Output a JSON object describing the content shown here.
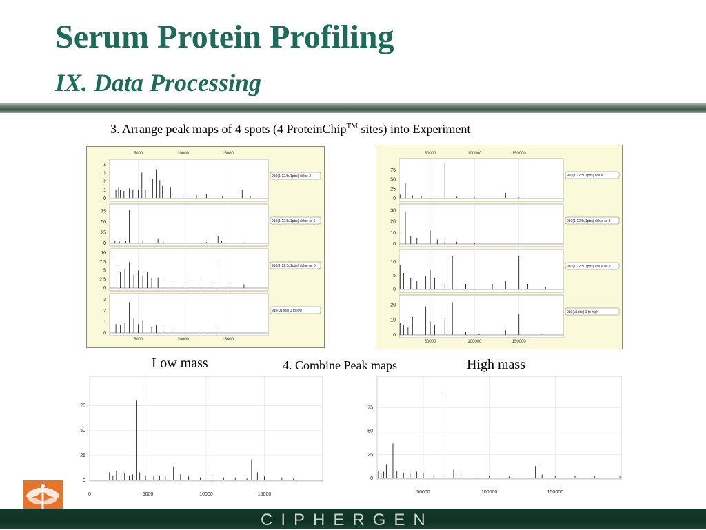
{
  "title": "Serum Protein Profiling",
  "subtitle": "IX. Data Processing",
  "step3": {
    "text": "3. Arrange peak maps of 4 spots (4 ProteinChip",
    "superscript": "TM",
    "suffix": " sites) into Experiment"
  },
  "step4": "4. Combine Peak maps",
  "low_mass_label": "Low mass",
  "high_mass_label": "High mass",
  "footer_brand": "CIPHERGEN",
  "logo_icon": "dragonfly-logo-icon",
  "colors": {
    "title": "#1f6b5a",
    "panel_bg": "#fafadb",
    "footer": "#0f3124",
    "logo": "#e8742c"
  },
  "chart_data": [
    {
      "type": "bar",
      "name_ref": "panel-left",
      "x_ticks": [
        "5000",
        "10000",
        "15000"
      ],
      "xlim": [
        1800,
        19500
      ],
      "subplots": [
        {
          "legend": "910(1-12.5u1pbs) cblue 3",
          "yticks": [
            "0",
            "1",
            "2",
            "3",
            "4"
          ],
          "ylim": [
            0,
            4.2
          ],
          "peaks": [
            [
              2500,
              1.1
            ],
            [
              2800,
              1.3
            ],
            [
              3000,
              1.0
            ],
            [
              3400,
              0.9
            ],
            [
              4000,
              1.2
            ],
            [
              4400,
              1.0
            ],
            [
              5000,
              1.0
            ],
            [
              5400,
              3.1
            ],
            [
              5800,
              1.0
            ],
            [
              6600,
              2.3
            ],
            [
              7000,
              3.5
            ],
            [
              7400,
              2.2
            ],
            [
              7700,
              1.5
            ],
            [
              8000,
              0.8
            ],
            [
              8600,
              1.3
            ],
            [
              9000,
              0.5
            ],
            [
              10000,
              0.4
            ],
            [
              11500,
              0.4
            ],
            [
              12600,
              0.5
            ],
            [
              14400,
              0.3
            ],
            [
              16600,
              1.0
            ],
            [
              17500,
              0.3
            ]
          ]
        },
        {
          "legend": "910(1-12.5u1pbs) cblue cs 6",
          "yticks": [
            "0",
            "25",
            "50",
            "75"
          ],
          "ylim": [
            0,
            82
          ],
          "peaks": [
            [
              2400,
              6
            ],
            [
              2900,
              4
            ],
            [
              3600,
              5
            ],
            [
              4000,
              78
            ],
            [
              5500,
              5
            ],
            [
              7200,
              10
            ],
            [
              7800,
              3
            ],
            [
              12600,
              3
            ],
            [
              13900,
              16
            ],
            [
              14300,
              6
            ],
            [
              16800,
              2
            ]
          ]
        },
        {
          "legend": "910(1-12.5u1pbs) cblue nc 6",
          "yticks": [
            "0",
            "2.5",
            "5",
            "7.5",
            "10"
          ],
          "ylim": [
            0,
            10
          ],
          "peaks": [
            [
              2300,
              9.3
            ],
            [
              2600,
              6.0
            ],
            [
              3000,
              4.5
            ],
            [
              3500,
              5.4
            ],
            [
              4000,
              7.4
            ],
            [
              4500,
              3.8
            ],
            [
              5000,
              5.0
            ],
            [
              5500,
              3.6
            ],
            [
              6000,
              4.5
            ],
            [
              6500,
              2.8
            ],
            [
              7200,
              3.0
            ],
            [
              8000,
              2.5
            ],
            [
              9000,
              1.6
            ],
            [
              10000,
              1.4
            ],
            [
              11000,
              2.8
            ],
            [
              12000,
              2.5
            ],
            [
              13000,
              1.6
            ],
            [
              14000,
              7.2
            ],
            [
              15000,
              1.0
            ],
            [
              16800,
              1.1
            ]
          ]
        },
        {
          "legend": "910(u1pbs) 1 to low",
          "yticks": [
            "0",
            "1",
            "2",
            "3"
          ],
          "ylim": [
            0,
            3.2
          ],
          "peaks": [
            [
              2500,
              0.8
            ],
            [
              3000,
              0.7
            ],
            [
              3500,
              0.9
            ],
            [
              4000,
              2.8
            ],
            [
              4500,
              1.3
            ],
            [
              5000,
              0.8
            ],
            [
              5500,
              1.1
            ],
            [
              6500,
              0.5
            ],
            [
              7000,
              0.7
            ],
            [
              8000,
              0.3
            ],
            [
              9000,
              0.2
            ],
            [
              12000,
              0.2
            ],
            [
              14000,
              0.3
            ]
          ]
        }
      ]
    },
    {
      "type": "bar",
      "name_ref": "panel-right",
      "x_ticks": [
        "50000",
        "100000",
        "150000"
      ],
      "xlim": [
        15000,
        200000
      ],
      "subplots": [
        {
          "legend": "910(1-12.5u1pbs) cblue 1",
          "yticks": [
            "0",
            "25",
            "50",
            "75"
          ],
          "ylim": [
            0,
            95
          ],
          "peaks": [
            [
              16000,
              10
            ],
            [
              22000,
              40
            ],
            [
              30000,
              8
            ],
            [
              40000,
              5
            ],
            [
              66500,
              92
            ],
            [
              80000,
              5
            ],
            [
              100000,
              3
            ],
            [
              135000,
              15
            ],
            [
              150000,
              3
            ]
          ]
        },
        {
          "legend": "910(1-12.5u1pbs) cblue cs 3",
          "yticks": [
            "0",
            "10",
            "20",
            "30"
          ],
          "ylim": [
            0,
            32
          ],
          "peaks": [
            [
              17000,
              9
            ],
            [
              22000,
              29
            ],
            [
              28000,
              7
            ],
            [
              35000,
              5
            ],
            [
              50000,
              12
            ],
            [
              58000,
              4
            ],
            [
              66500,
              3
            ],
            [
              80000,
              2
            ],
            [
              100000,
              1
            ]
          ]
        },
        {
          "legend": "910(1-12.5u1pbs) cblue nc 2",
          "yticks": [
            "0",
            "5",
            "10"
          ],
          "ylim": [
            0,
            13
          ],
          "peaks": [
            [
              16000,
              9
            ],
            [
              20000,
              6
            ],
            [
              28000,
              4
            ],
            [
              35000,
              3
            ],
            [
              45000,
              5
            ],
            [
              50000,
              7
            ],
            [
              55000,
              4
            ],
            [
              66500,
              2
            ],
            [
              75000,
              12
            ],
            [
              90000,
              2
            ],
            [
              120000,
              2
            ],
            [
              135000,
              3
            ],
            [
              150000,
              12
            ],
            [
              160000,
              2
            ],
            [
              180000,
              1
            ]
          ]
        },
        {
          "legend": "910(u1pbs) 1 to high",
          "yticks": [
            "0",
            "10",
            "20"
          ],
          "ylim": [
            0,
            24
          ],
          "peaks": [
            [
              16000,
              8
            ],
            [
              20000,
              7
            ],
            [
              25000,
              5
            ],
            [
              30000,
              12
            ],
            [
              45000,
              19
            ],
            [
              50000,
              9
            ],
            [
              55000,
              7
            ],
            [
              66500,
              11
            ],
            [
              75000,
              22
            ],
            [
              90000,
              2
            ],
            [
              105000,
              1
            ],
            [
              135000,
              3
            ],
            [
              150000,
              14
            ],
            [
              175000,
              1
            ]
          ]
        }
      ]
    },
    {
      "type": "bar",
      "name_ref": "chart-low",
      "x_ticks": [
        "0",
        "5000",
        "10000",
        "15000"
      ],
      "y_ticks": [
        "0",
        "25",
        "50",
        "75"
      ],
      "xlim": [
        0,
        20000
      ],
      "ylim": [
        0,
        90
      ],
      "peaks": [
        [
          1700,
          8
        ],
        [
          2000,
          5
        ],
        [
          2300,
          9
        ],
        [
          2700,
          6
        ],
        [
          3000,
          7
        ],
        [
          3400,
          5
        ],
        [
          3700,
          6
        ],
        [
          4000,
          80
        ],
        [
          4300,
          8
        ],
        [
          4800,
          5
        ],
        [
          5500,
          4
        ],
        [
          6000,
          5
        ],
        [
          6500,
          4
        ],
        [
          7200,
          14
        ],
        [
          7800,
          6
        ],
        [
          8500,
          4
        ],
        [
          9500,
          3
        ],
        [
          10500,
          4
        ],
        [
          11500,
          3
        ],
        [
          12500,
          3
        ],
        [
          13500,
          2
        ],
        [
          13900,
          21
        ],
        [
          14400,
          8
        ],
        [
          15000,
          4
        ],
        [
          16500,
          3
        ],
        [
          17500,
          2
        ]
      ]
    },
    {
      "type": "bar",
      "name_ref": "chart-high",
      "x_ticks": [
        "50000",
        "100000",
        "150000"
      ],
      "y_ticks": [
        "0",
        "25",
        "50",
        "75"
      ],
      "xlim": [
        15000,
        200000
      ],
      "ylim": [
        0,
        95
      ],
      "peaks": [
        [
          16000,
          8
        ],
        [
          18000,
          6
        ],
        [
          20000,
          7
        ],
        [
          22000,
          15
        ],
        [
          27000,
          37
        ],
        [
          30000,
          8
        ],
        [
          35000,
          6
        ],
        [
          40000,
          5
        ],
        [
          45000,
          7
        ],
        [
          50000,
          5
        ],
        [
          58000,
          4
        ],
        [
          66500,
          90
        ],
        [
          73000,
          9
        ],
        [
          80000,
          6
        ],
        [
          90000,
          4
        ],
        [
          100000,
          3
        ],
        [
          115000,
          2
        ],
        [
          135000,
          13
        ],
        [
          140000,
          4
        ],
        [
          150000,
          3
        ],
        [
          165000,
          3
        ],
        [
          180000,
          2
        ],
        [
          199000,
          2
        ]
      ]
    }
  ]
}
